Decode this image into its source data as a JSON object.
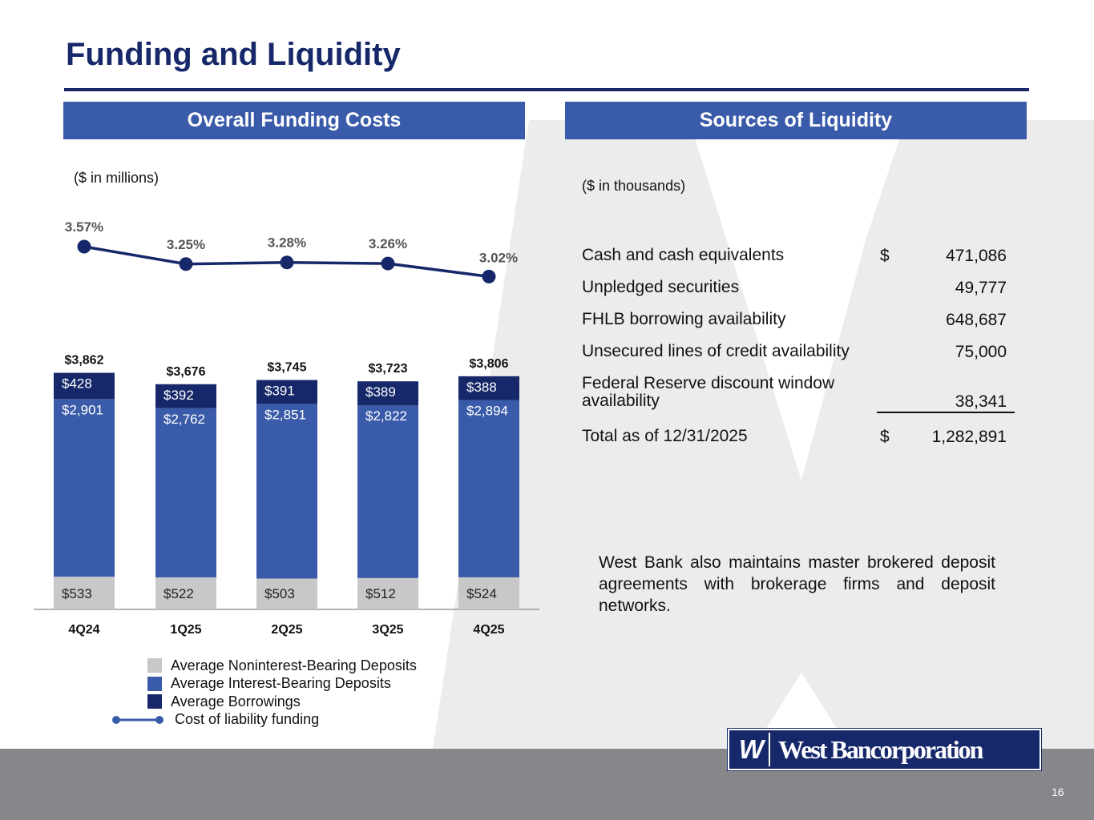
{
  "page": {
    "title": "Funding and Liquidity",
    "page_number": "16",
    "logo_mark": "W",
    "logo_text": "West Bancorporation"
  },
  "left_section": {
    "heading": "Overall Funding Costs",
    "unit_note": "($ in millions)"
  },
  "right_section": {
    "heading": "Sources of Liquidity",
    "unit_note": "($ in thousands)",
    "rows": [
      {
        "label": "Cash and cash equivalents",
        "dollar": "$",
        "value": "471,086"
      },
      {
        "label": "Unpledged securities",
        "dollar": "",
        "value": "49,777"
      },
      {
        "label": "FHLB borrowing availability",
        "dollar": "",
        "value": "648,687"
      },
      {
        "label": "Unsecured lines of credit availability",
        "dollar": "",
        "value": "75,000"
      },
      {
        "label": "Federal Reserve discount window availability",
        "dollar": "",
        "value": "38,341"
      },
      {
        "label": "Total as of 12/31/2025",
        "dollar": "$",
        "value": "1,282,891"
      }
    ],
    "paragraph": "West Bank also maintains master brokered deposit agreements with brokerage firms and deposit networks."
  },
  "colors": {
    "navy": "#16286a",
    "blue": "#3a5ba9",
    "gray": "#c8c8ca",
    "line": "#16286a",
    "footer": "#87878b"
  },
  "chart_data": {
    "type": "bar",
    "stacked": true,
    "categories": [
      "4Q24",
      "1Q25",
      "2Q25",
      "3Q25",
      "4Q25"
    ],
    "series": [
      {
        "name": "Average Noninterest-Bearing Deposits",
        "values": [
          533,
          522,
          503,
          512,
          524
        ],
        "labels": [
          "$533",
          "$522",
          "$503",
          "$512",
          "$524"
        ],
        "color": "#c8c8ca"
      },
      {
        "name": "Average Interest-Bearing Deposits",
        "values": [
          2901,
          2762,
          2851,
          2822,
          2894
        ],
        "labels": [
          "$2,901",
          "$2,762",
          "$2,851",
          "$2,822",
          "$2,894"
        ],
        "color": "#3a5ba9"
      },
      {
        "name": "Average Borrowings",
        "values": [
          428,
          392,
          391,
          389,
          388
        ],
        "labels": [
          "$428",
          "$392",
          "$391",
          "$389",
          "$388"
        ],
        "color": "#16286a"
      }
    ],
    "totals": [
      3862,
      3676,
      3745,
      3723,
      3806
    ],
    "total_labels": [
      "$3,862",
      "$3,676",
      "$3,745",
      "$3,723",
      "$3,806"
    ],
    "line_series": {
      "name": "Cost of liability funding",
      "type": "line",
      "values": [
        3.57,
        3.25,
        3.28,
        3.26,
        3.02
      ],
      "labels": [
        "3.57%",
        "3.25%",
        "3.28%",
        "3.26%",
        "3.02%"
      ],
      "color": "#16286a"
    },
    "legend_position": "bottom",
    "grid": false
  }
}
